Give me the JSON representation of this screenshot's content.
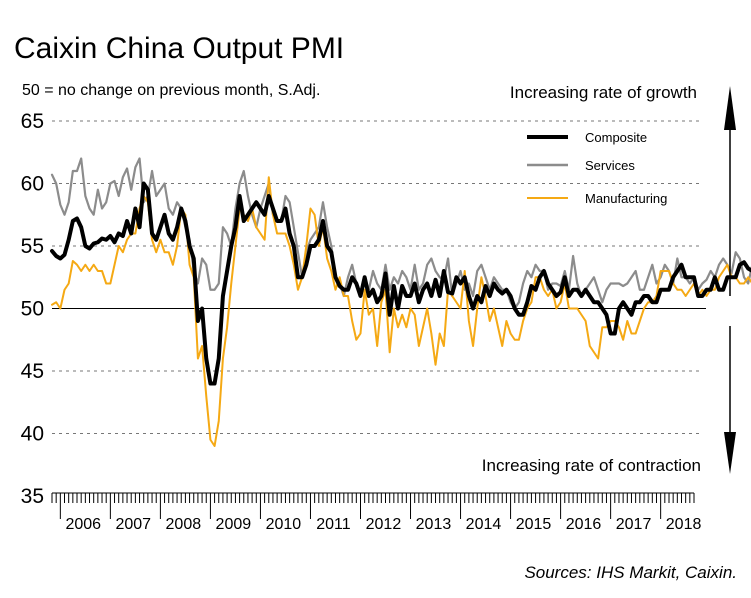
{
  "chart_data": {
    "type": "line",
    "title": "Caixin China Output PMI",
    "subtitle": "50 = no change on previous month, S.Adj.",
    "source": "Sources: IHS Markit, Caixin.",
    "annotation_up": "Increasing rate of growth",
    "annotation_down": "Increasing rate of contraction",
    "ylim": [
      35,
      65
    ],
    "yticks": [
      "35",
      "40",
      "45",
      "50",
      "55",
      "60",
      "65"
    ],
    "reference_line": 50,
    "x_start": "2005-11",
    "x_end": "2018-09",
    "xtick_labels": [
      "2006",
      "2007",
      "2008",
      "2009",
      "2010",
      "2011",
      "2012",
      "2013",
      "2014",
      "2015",
      "2016",
      "2017",
      "2018"
    ],
    "legend_position": "top-right",
    "series": [
      {
        "name": "Composite",
        "color": "#000000",
        "values": [
          54.6,
          54.2,
          54.0,
          54.3,
          55.5,
          57.0,
          57.2,
          56.5,
          55.0,
          54.8,
          55.2,
          55.3,
          55.6,
          55.5,
          55.8,
          55.3,
          56.0,
          55.8,
          57.0,
          56.0,
          58.0,
          56.5,
          60.0,
          59.5,
          56.0,
          55.5,
          56.5,
          57.5,
          56.0,
          55.5,
          56.5,
          58.0,
          57.0,
          55.0,
          54.0,
          49.0,
          50.0,
          46.0,
          44.0,
          44.0,
          46.0,
          51.0,
          53.0,
          55.0,
          56.5,
          59.0,
          57.0,
          57.5,
          58.0,
          58.5,
          58.0,
          57.5,
          59.0,
          58.0,
          57.0,
          57.0,
          58.0,
          56.0,
          55.0,
          52.5,
          52.5,
          53.5,
          55.0,
          55.0,
          55.5,
          57.0,
          55.0,
          54.5,
          52.5,
          51.8,
          51.5,
          51.5,
          52.5,
          52.0,
          51.0,
          52.5,
          51.0,
          51.5,
          50.5,
          51.0,
          52.8,
          49.5,
          51.8,
          50.0,
          51.8,
          51.0,
          51.0,
          52.0,
          50.5,
          51.5,
          52.0,
          51.0,
          52.3,
          51.0,
          53.0,
          51.3,
          51.2,
          52.5,
          52.0,
          52.5,
          51.0,
          50.0,
          51.0,
          50.5,
          51.8,
          51.0,
          52.0,
          51.5,
          51.2,
          51.5,
          51.0,
          50.0,
          49.5,
          49.5,
          50.5,
          51.8,
          51.5,
          52.5,
          53.0,
          52.0,
          51.5,
          51.0,
          51.3,
          52.5,
          51.0,
          51.5,
          51.5,
          51.0,
          51.5,
          51.0,
          50.5,
          50.5,
          50.0,
          49.5,
          48.0,
          48.0,
          50.0,
          50.5,
          50.0,
          49.5,
          50.5,
          50.5,
          51.0,
          51.0,
          50.5,
          50.5,
          51.5,
          51.5,
          51.5,
          52.5,
          53.0,
          53.5,
          52.5,
          52.5,
          52.5,
          51.0,
          51.0,
          51.5,
          51.5,
          52.5,
          51.5,
          51.5,
          52.5,
          52.5,
          52.5,
          53.5,
          53.7,
          53.2,
          53.0,
          52.5,
          53.0,
          52.5,
          53.0,
          52.2,
          52.0,
          52.5,
          52.0,
          51.0,
          51.0,
          52.0,
          52.2
        ]
      },
      {
        "name": "Services",
        "color": "#8c8c8c",
        "values": [
          60.7,
          60.0,
          58.3,
          57.5,
          58.5,
          61.0,
          61.0,
          62.0,
          59.0,
          58.0,
          57.5,
          59.5,
          58.0,
          58.5,
          60.0,
          60.2,
          59.0,
          60.5,
          61.2,
          59.5,
          61.3,
          62.0,
          58.5,
          59.0,
          61.0,
          59.0,
          59.5,
          60.0,
          58.0,
          57.5,
          58.5,
          58.0,
          56.5,
          55.5,
          53.0,
          52.0,
          54.0,
          53.5,
          51.5,
          51.5,
          52.0,
          56.5,
          56.0,
          55.0,
          58.0,
          60.0,
          61.0,
          59.0,
          57.5,
          56.5,
          58.0,
          59.0,
          60.0,
          57.5,
          57.0,
          57.0,
          59.0,
          58.5,
          56.5,
          54.5,
          52.5,
          54.5,
          55.5,
          56.0,
          56.5,
          58.5,
          56.5,
          55.0,
          52.5,
          52.0,
          51.0,
          52.5,
          53.5,
          52.0,
          51.0,
          52.0,
          51.5,
          53.0,
          52.0,
          51.5,
          53.5,
          51.5,
          52.5,
          52.0,
          53.0,
          52.5,
          51.5,
          53.5,
          51.5,
          52.0,
          53.5,
          54.0,
          53.0,
          52.5,
          52.3,
          54.0,
          51.0,
          52.0,
          53.0,
          51.5,
          52.0,
          51.0,
          53.0,
          53.5,
          52.5,
          51.5,
          52.5,
          52.0,
          51.5,
          51.5,
          50.5,
          50.0,
          50.5,
          52.0,
          53.0,
          52.5,
          53.5,
          53.0,
          53.0,
          51.5,
          52.0,
          52.0,
          51.8,
          53.0,
          51.5,
          54.2,
          52.0,
          51.0,
          51.5,
          52.0,
          52.5,
          51.5,
          50.5,
          51.5,
          52.0,
          52.0,
          52.0,
          51.8,
          52.0,
          52.5,
          53.0,
          51.5,
          51.5,
          52.5,
          53.5,
          52.0,
          52.5,
          53.5,
          53.0,
          52.0,
          54.0,
          52.5,
          52.5,
          52.0,
          52.5,
          51.5,
          52.0,
          52.3,
          53.0,
          52.5,
          53.5,
          54.0,
          53.5,
          52.8,
          54.5,
          54.0,
          52.5,
          52.0,
          53.5,
          54.5,
          54.0,
          52.5,
          51.5,
          52.0,
          53.0,
          53.5,
          54.0,
          54.2
        ]
      },
      {
        "name": "Manufacturing",
        "color": "#f5a914",
        "values": [
          50.3,
          50.5,
          50.0,
          51.5,
          52.0,
          53.8,
          53.5,
          53.0,
          53.5,
          53.0,
          53.5,
          53.0,
          53.0,
          52.0,
          52.0,
          53.5,
          55.0,
          54.5,
          55.5,
          56.0,
          56.0,
          58.0,
          59.0,
          58.5,
          55.5,
          54.5,
          55.5,
          54.5,
          54.5,
          53.5,
          55.0,
          58.0,
          57.5,
          53.5,
          52.5,
          46.0,
          47.0,
          43.0,
          39.5,
          39.0,
          41.0,
          46.0,
          48.5,
          52.0,
          55.0,
          58.0,
          57.5,
          57.0,
          58.0,
          56.5,
          56.0,
          55.5,
          60.5,
          57.5,
          56.0,
          56.0,
          56.0,
          55.0,
          53.5,
          51.5,
          52.5,
          55.0,
          58.0,
          57.5,
          55.0,
          56.5,
          54.0,
          53.0,
          51.5,
          52.5,
          51.0,
          51.0,
          49.0,
          47.5,
          48.0,
          51.5,
          49.5,
          50.0,
          47.0,
          50.5,
          51.5,
          46.5,
          50.0,
          48.5,
          49.5,
          48.5,
          50.0,
          49.5,
          47.0,
          48.5,
          50.0,
          48.0,
          45.5,
          48.0,
          47.0,
          51.5,
          51.0,
          50.5,
          50.0,
          53.0,
          49.0,
          47.0,
          50.0,
          52.5,
          51.0,
          49.0,
          50.0,
          48.5,
          47.0,
          49.0,
          48.0,
          47.5,
          47.5,
          49.0,
          50.0,
          50.5,
          52.5,
          52.5,
          51.5,
          51.0,
          51.5,
          50.0,
          50.5,
          52.0,
          50.0,
          50.0,
          50.0,
          49.5,
          49.0,
          47.0,
          46.5,
          46.0,
          48.5,
          48.5,
          49.0,
          49.0,
          48.5,
          47.5,
          49.0,
          48.0,
          48.0,
          49.0,
          50.0,
          50.5,
          50.5,
          51.0,
          53.0,
          53.0,
          53.0,
          52.0,
          51.5,
          51.5,
          51.0,
          51.5,
          52.0,
          51.0,
          51.5,
          51.0,
          51.5,
          51.5,
          52.5,
          53.0,
          53.5,
          52.5,
          52.5,
          52.0,
          52.0,
          52.5,
          52.0,
          51.5,
          51.0,
          51.5,
          51.0,
          50.0,
          50.0,
          50.5,
          51.0,
          51.5
        ]
      }
    ]
  }
}
